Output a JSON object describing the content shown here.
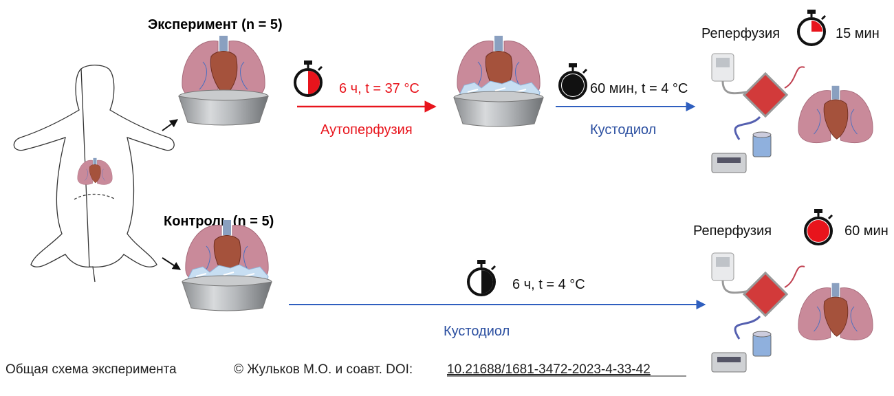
{
  "colors": {
    "red": "#e8141c",
    "blue": "#2f5fbf",
    "blue_text": "#2a4ea0",
    "black": "#111111"
  },
  "experiment": {
    "title": "Эксперимент (n = 5)",
    "step1": {
      "time": "6 ч, t = 37 °C",
      "solution": "Аутоперфузия",
      "stopwatch_fill_fraction": 0.5,
      "stopwatch_color": "red"
    },
    "step2": {
      "time": "60 мин, t = 4 °C",
      "solution": "Кустодиол",
      "stopwatch_fill_fraction": 1.0,
      "stopwatch_color": "black"
    },
    "reperfusion": {
      "label": "Реперфузия",
      "time": "15 мин",
      "stopwatch_fill_fraction": 0.25,
      "stopwatch_color": "red"
    }
  },
  "control": {
    "title": "Контроль (n = 5)",
    "step1": {
      "time": "6 ч, t = 4 °C",
      "solution": "Кустодиол",
      "stopwatch_fill_fraction": 0.5,
      "stopwatch_color": "black"
    },
    "reperfusion": {
      "label": "Реперфузия",
      "time": "60 мин",
      "stopwatch_fill_fraction": 1.0,
      "stopwatch_color": "red"
    }
  },
  "footer": {
    "caption": "Общая схема эксперимента",
    "credit": "© Жульков М.О. и соавт. DOI:",
    "doi": "10.21688/1681-3472-2023-4-33-42"
  }
}
